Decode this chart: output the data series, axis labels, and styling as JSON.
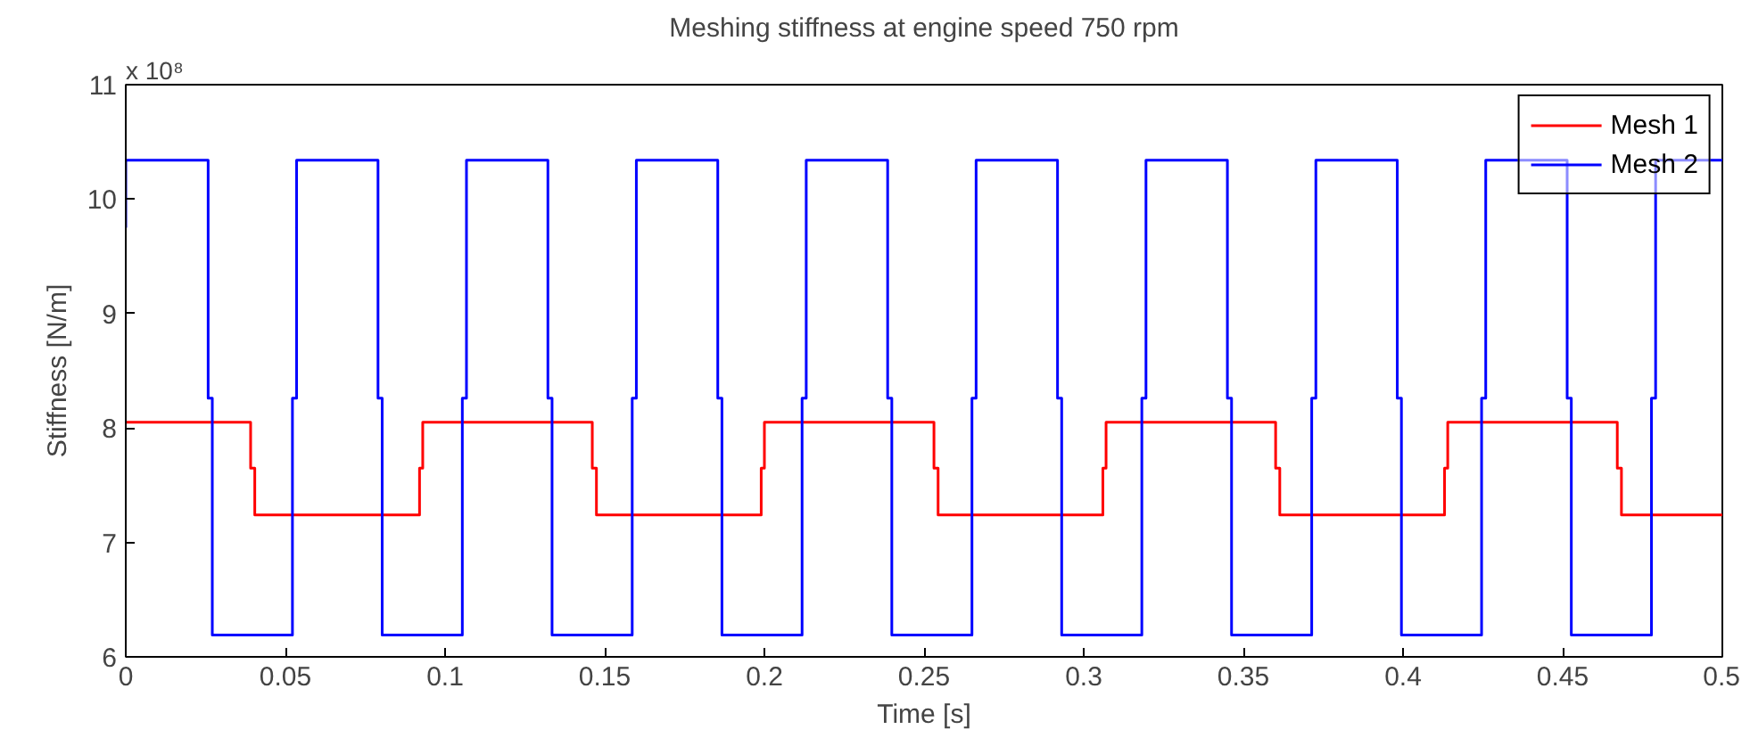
{
  "chart_data": {
    "type": "line",
    "title": "Meshing stiffness at engine speed 750 rpm",
    "xlabel": "Time [s]",
    "ylabel": "Stiffness [N/m]",
    "annotations": [
      "x 10⁸"
    ],
    "xlim": [
      0,
      0.5
    ],
    "xticks": [
      0,
      0.05,
      0.1,
      0.15,
      0.2,
      0.25,
      0.3,
      0.35,
      0.4,
      0.45,
      0.5
    ],
    "ylim": [
      6,
      11
    ],
    "yticks": [
      6,
      7,
      8,
      9,
      10,
      11
    ],
    "grid": false,
    "legend": "top right",
    "line_style": "solid",
    "marker": "none",
    "series": [
      {
        "name": "Mesh 1",
        "color": "#ff0000",
        "x": [
          0,
          0.0391,
          0.0391,
          0.0404,
          0.0404,
          0.092,
          0.092,
          0.093,
          0.093,
          0.1461,
          0.1461,
          0.1474,
          0.1474,
          0.199,
          0.199,
          0.2,
          0.2,
          0.2531,
          0.2531,
          0.2544,
          0.2544,
          0.306,
          0.306,
          0.307,
          0.307,
          0.3601,
          0.3601,
          0.3614,
          0.3614,
          0.413,
          0.413,
          0.414,
          0.414,
          0.4671,
          0.4671,
          0.4684,
          0.4684,
          0.5
        ],
        "values": [
          8.05,
          8.05,
          7.65,
          7.65,
          7.24,
          7.24,
          7.65,
          7.65,
          8.05,
          8.05,
          7.65,
          7.65,
          7.24,
          7.24,
          7.65,
          7.65,
          8.05,
          8.05,
          7.65,
          7.65,
          7.24,
          7.24,
          7.65,
          7.65,
          8.05,
          8.05,
          7.65,
          7.65,
          7.24,
          7.24,
          7.65,
          7.65,
          8.05,
          8.05,
          7.65,
          7.65,
          7.24,
          7.24
        ]
      },
      {
        "name": "Mesh 2",
        "color": "#0000ff",
        "x": [
          0,
          0,
          0.0258,
          0.0258,
          0.0271,
          0.0271,
          0.0522,
          0.0522,
          0.0535,
          0.0535,
          0.079,
          0.079,
          0.0803,
          0.0803,
          0.1054,
          0.1054,
          0.1067,
          0.1067,
          0.1322,
          0.1322,
          0.1335,
          0.1335,
          0.1586,
          0.1586,
          0.1599,
          0.1599,
          0.1854,
          0.1854,
          0.1867,
          0.1867,
          0.2118,
          0.2118,
          0.2131,
          0.2131,
          0.2386,
          0.2386,
          0.2399,
          0.2399,
          0.265,
          0.265,
          0.2663,
          0.2663,
          0.2918,
          0.2918,
          0.2931,
          0.2931,
          0.3182,
          0.3182,
          0.3195,
          0.3195,
          0.345,
          0.345,
          0.3463,
          0.3463,
          0.3714,
          0.3714,
          0.3727,
          0.3727,
          0.3982,
          0.3982,
          0.3995,
          0.3995,
          0.4246,
          0.4246,
          0.4259,
          0.4259,
          0.4514,
          0.4514,
          0.4527,
          0.4527,
          0.4778,
          0.4778,
          0.4791,
          0.4791,
          0.5
        ],
        "values": [
          9.75,
          10.34,
          10.34,
          8.26,
          8.26,
          6.19,
          6.19,
          8.26,
          8.26,
          10.34,
          10.34,
          8.26,
          8.26,
          6.19,
          6.19,
          8.26,
          8.26,
          10.34,
          10.34,
          8.26,
          8.26,
          6.19,
          6.19,
          8.26,
          8.26,
          10.34,
          10.34,
          8.26,
          8.26,
          6.19,
          6.19,
          8.26,
          8.26,
          10.34,
          10.34,
          8.26,
          8.26,
          6.19,
          6.19,
          8.26,
          8.26,
          10.34,
          10.34,
          8.26,
          8.26,
          6.19,
          6.19,
          8.26,
          8.26,
          10.34,
          10.34,
          8.26,
          8.26,
          6.19,
          6.19,
          8.26,
          8.26,
          10.34,
          10.34,
          8.26,
          8.26,
          6.19,
          6.19,
          8.26,
          8.26,
          10.34,
          10.34,
          8.26,
          8.26,
          6.19,
          6.19,
          8.26,
          8.26,
          10.34,
          10.34
        ]
      }
    ]
  }
}
